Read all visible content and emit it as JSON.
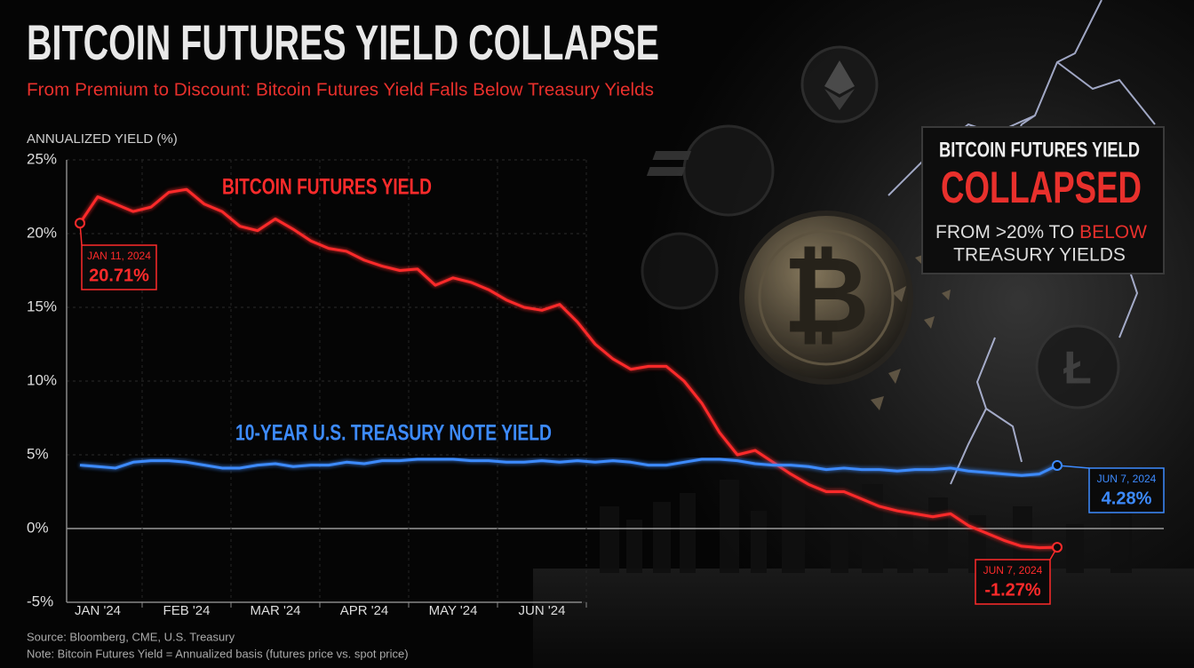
{
  "chart_data": {
    "type": "line",
    "title": "BITCOIN FUTURES YIELD COLLAPSE",
    "subtitle": "From Premium to Discount: Bitcoin Futures Yield Falls Below Treasury Yields",
    "y_axis_label": "ANNUALIZED YIELD (%)",
    "categories": [
      null,
      "JAN '24",
      null,
      null,
      null,
      null,
      "FEB '24",
      null,
      null,
      null,
      null,
      "MAR '24",
      null,
      null,
      null,
      null,
      "APR '24",
      null,
      null,
      null,
      null,
      "MAY '24",
      null,
      null,
      null,
      null,
      "JUN '24",
      null,
      null,
      null,
      null,
      null,
      null,
      null,
      null,
      null,
      null,
      null,
      null,
      null,
      null,
      null,
      null,
      null,
      null,
      null,
      null,
      null,
      null,
      null,
      null,
      null,
      null,
      null,
      null,
      null
    ],
    "series": [
      {
        "name": "BITCOIN FUTURES YIELD",
        "color": "#ff2b2b",
        "values": [
          20.71,
          22.5,
          22,
          21.5,
          21.8,
          22.8,
          23,
          22,
          21.5,
          20.5,
          20.2,
          21,
          20.3,
          19.5,
          19,
          18.8,
          18.2,
          17.8,
          17.5,
          17.6,
          16.5,
          17,
          16.7,
          16.2,
          15.5,
          15,
          14.8,
          15.2,
          14,
          12.5,
          11.5,
          10.8,
          11,
          11,
          10,
          8.5,
          6.5,
          5,
          5.3,
          4.5,
          3.7,
          3,
          2.5,
          2.5,
          2,
          1.5,
          1.2,
          1,
          0.8,
          1,
          0.2,
          -0.3,
          -0.8,
          -1.2,
          -1.3,
          -1.27
        ]
      },
      {
        "name": "10-YEAR U.S. TREASURY NOTE YIELD",
        "color": "#3d8bff",
        "values": [
          4.3,
          4.2,
          4.1,
          4.5,
          4.6,
          4.6,
          4.5,
          4.3,
          4.1,
          4.1,
          4.3,
          4.4,
          4.2,
          4.3,
          4.3,
          4.5,
          4.4,
          4.6,
          4.6,
          4.7,
          4.7,
          4.7,
          4.6,
          4.6,
          4.5,
          4.5,
          4.6,
          4.5,
          4.6,
          4.5,
          4.6,
          4.5,
          4.3,
          4.3,
          4.5,
          4.7,
          4.7,
          4.6,
          4.4,
          4.3,
          4.3,
          4.2,
          4.0,
          4.1,
          4.0,
          4.0,
          3.9,
          4.0,
          4.0,
          4.1,
          3.9,
          3.8,
          3.7,
          3.6,
          3.7,
          4.28
        ]
      }
    ],
    "ylim": [
      -5,
      25
    ],
    "yticks": [
      {
        "value": -5,
        "label": "-5%"
      },
      {
        "value": 0,
        "label": "0%"
      },
      {
        "value": 5,
        "label": "5%"
      },
      {
        "value": 10,
        "label": "10%"
      },
      {
        "value": 15,
        "label": "15%"
      },
      {
        "value": 20,
        "label": "20%"
      },
      {
        "value": 25,
        "label": "25%"
      }
    ],
    "grid": true,
    "annotations": [
      {
        "date": "JAN 11, 2024",
        "label": "20.71%"
      },
      {
        "date": "JUN 7, 2024",
        "label": "4.28%"
      },
      {
        "date": "JUN 7, 2024",
        "label": "-1.27%"
      }
    ],
    "callout": {
      "line1": "BITCOIN FUTURES YIELD",
      "headline": "COLLAPSED",
      "line3_prefix": "FROM >20% TO",
      "line3_highlight": "BELOW",
      "line4": "TREASURY YIELDS"
    },
    "source": "Source: Bloomberg, CME, U.S. Treasury",
    "note": "Note: Bitcoin Futures Yield = Annualized basis (futures price vs. spot price)"
  }
}
